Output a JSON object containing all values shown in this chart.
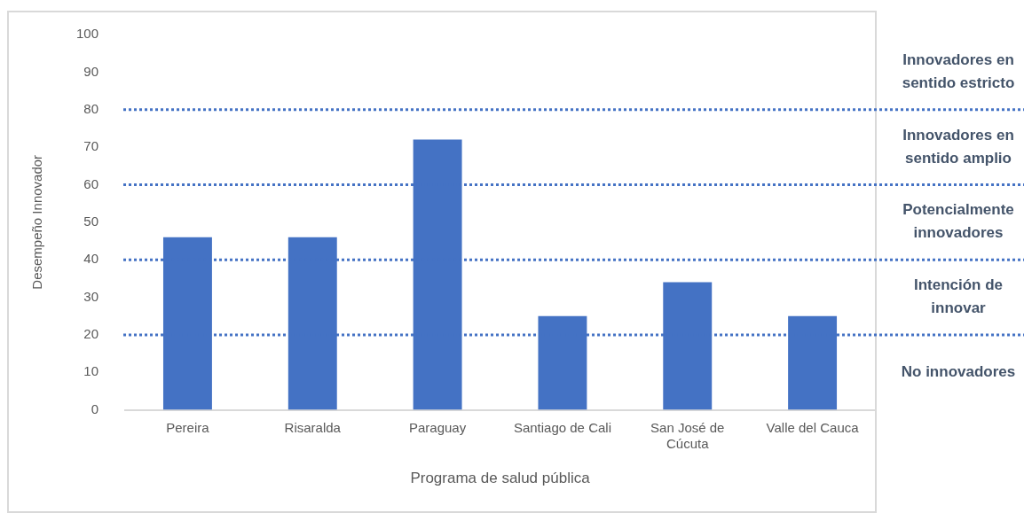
{
  "chart_data": {
    "type": "bar",
    "xlabel": "Programa de salud pública",
    "ylabel": "Desempeño Innovador",
    "categories": [
      "Pereira",
      "Risaralda",
      "Paraguay",
      "Santiago de Cali",
      "San José de Cúcuta",
      "Valle del Cauca"
    ],
    "values": [
      46,
      46,
      72,
      25,
      34,
      25
    ],
    "color": "#4472c4",
    "ylim": [
      0,
      100
    ],
    "yticks": [
      0,
      10,
      20,
      30,
      40,
      50,
      60,
      70,
      80,
      90,
      100
    ],
    "grid": false,
    "ref_lines": [
      {
        "axis": "y",
        "value": 20,
        "color": "#4472c4",
        "line_style": "dotted"
      },
      {
        "axis": "y",
        "value": 40,
        "color": "#4472c4",
        "line_style": "dotted"
      },
      {
        "axis": "y",
        "value": 60,
        "color": "#4472c4",
        "line_style": "dotted"
      },
      {
        "axis": "y",
        "value": 80,
        "color": "#4472c4",
        "line_style": "dotted"
      }
    ],
    "annotations": [
      "Innovadores en sentido estricto",
      "Innovadores en sentido amplio",
      "Potencialmente innovadores",
      "Intención de innovar",
      "No innovadores"
    ]
  }
}
